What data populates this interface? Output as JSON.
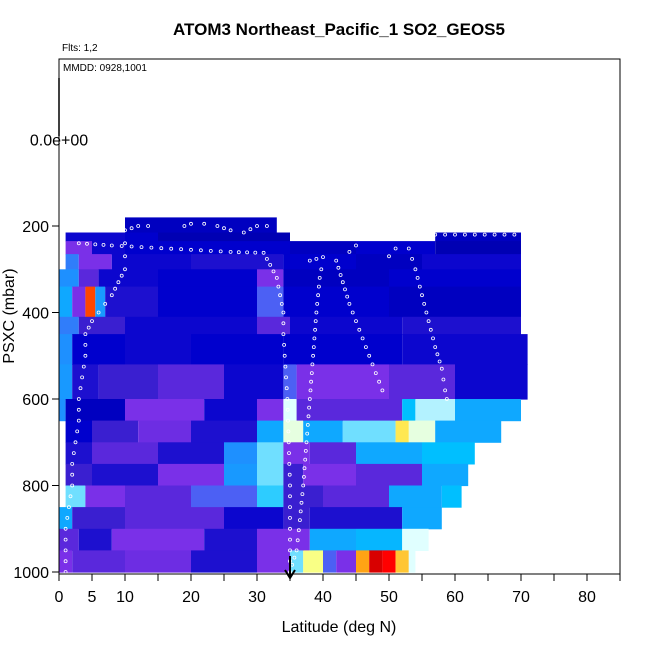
{
  "chart_data": {
    "type": "heatmap",
    "title": "ATOM3 Northeast_Pacific_1 SO2_GEOS5",
    "subtitle_flights": "Flts: 1,2",
    "subtitle_dates": "MMDD: 0928,1001",
    "xlabel": "Latitude (deg N)",
    "ylabel": "PSXC (mbar)",
    "xlim": [
      0,
      85
    ],
    "ylim": [
      1000,
      0
    ],
    "x_ticks": [
      0,
      5,
      10,
      20,
      30,
      40,
      50,
      60,
      70,
      80
    ],
    "x_tick_labels": [
      "0",
      "5",
      "10",
      "20",
      "30",
      "40",
      "50",
      "60",
      "70",
      "80"
    ],
    "x_minor_ticks": [
      15,
      25,
      35,
      45,
      55,
      65,
      75,
      85
    ],
    "y_ticks": [
      200,
      400,
      600,
      800,
      1000
    ],
    "y_tick_labels": [
      "200",
      "400",
      "600",
      "800",
      "1000"
    ],
    "y_extra_label": {
      "value": 0,
      "text": "0.0e+00"
    },
    "colorscale": [
      "#00008b",
      "#0000cd",
      "#3a1fd0",
      "#7a30e8",
      "#1e90ff",
      "#00bfff",
      "#e0ffff",
      "#ffff66",
      "#ff8c00",
      "#ff0000",
      "#b00000"
    ],
    "marker": {
      "x": 35,
      "y": 1000,
      "shape": "arrow-down"
    },
    "bands": [
      {
        "p": [
          180,
          215
        ],
        "segs": [
          [
            10,
            33,
            0.08
          ]
        ]
      },
      {
        "p": [
          215,
          235
        ],
        "segs": [
          [
            1,
            10,
            0.12
          ],
          [
            10,
            15,
            0.1
          ],
          [
            15,
            35,
            0.06
          ],
          [
            57,
            70,
            0.08
          ]
        ]
      },
      {
        "p": [
          235,
          265
        ],
        "segs": [
          [
            1,
            5,
            0.3
          ],
          [
            5,
            10,
            0.12
          ],
          [
            10,
            35,
            0.1
          ],
          [
            35,
            45,
            0.08
          ],
          [
            45,
            57,
            0.1
          ],
          [
            57,
            70,
            0.06
          ]
        ]
      },
      {
        "p": [
          265,
          300
        ],
        "segs": [
          [
            1,
            3,
            0.38
          ],
          [
            3,
            8,
            0.3
          ],
          [
            8,
            20,
            0.12
          ],
          [
            20,
            34,
            0.15
          ],
          [
            34,
            45,
            0.1
          ],
          [
            45,
            55,
            0.08
          ],
          [
            55,
            70,
            0.12
          ]
        ]
      },
      {
        "p": [
          300,
          340
        ],
        "segs": [
          [
            0,
            3,
            0.4
          ],
          [
            3,
            6,
            0.25
          ],
          [
            6,
            15,
            0.12
          ],
          [
            15,
            30,
            0.1
          ],
          [
            30,
            34,
            0.3
          ],
          [
            34,
            50,
            0.08
          ],
          [
            50,
            70,
            0.1
          ]
        ]
      },
      {
        "p": [
          340,
          410
        ],
        "segs": [
          [
            0,
            2,
            0.45
          ],
          [
            2,
            4,
            0.3
          ],
          [
            4,
            5.5,
            0.85
          ],
          [
            5.5,
            7,
            0.42
          ],
          [
            7,
            15,
            0.15
          ],
          [
            15,
            30,
            0.1
          ],
          [
            30,
            34,
            0.35
          ],
          [
            34,
            50,
            0.1
          ],
          [
            50,
            70,
            0.08
          ]
        ]
      },
      {
        "p": [
          410,
          450
        ],
        "segs": [
          [
            0,
            3,
            0.38
          ],
          [
            3,
            10,
            0.2
          ],
          [
            10,
            30,
            0.12
          ],
          [
            30,
            35,
            0.25
          ],
          [
            35,
            52,
            0.12
          ],
          [
            52,
            70,
            0.15
          ]
        ]
      },
      {
        "p": [
          450,
          520
        ],
        "segs": [
          [
            0,
            2,
            0.4
          ],
          [
            2,
            10,
            0.1
          ],
          [
            10,
            20,
            0.12
          ],
          [
            20,
            34,
            0.1
          ],
          [
            34,
            52,
            0.1
          ],
          [
            52,
            71,
            0.12
          ]
        ]
      },
      {
        "p": [
          520,
          600
        ],
        "segs": [
          [
            0,
            2,
            0.42
          ],
          [
            2,
            6,
            0.15
          ],
          [
            6,
            15,
            0.2
          ],
          [
            15,
            25,
            0.25
          ],
          [
            25,
            34,
            0.12
          ],
          [
            34,
            36,
            0.35
          ],
          [
            36,
            50,
            0.3
          ],
          [
            50,
            60,
            0.25
          ],
          [
            60,
            71,
            0.12
          ]
        ]
      },
      {
        "p": [
          600,
          650
        ],
        "segs": [
          [
            0,
            1,
            0.4
          ],
          [
            1,
            10,
            0.08
          ],
          [
            10,
            22,
            0.3
          ],
          [
            22,
            30,
            0.12
          ],
          [
            30,
            34,
            0.3
          ],
          [
            34,
            36,
            0.6
          ],
          [
            36,
            52,
            0.25
          ],
          [
            52,
            54,
            0.5
          ],
          [
            54,
            60,
            0.58
          ],
          [
            60,
            70,
            0.45
          ]
        ]
      },
      {
        "p": [
          650,
          700
        ],
        "segs": [
          [
            1,
            5,
            0.1
          ],
          [
            5,
            12,
            0.2
          ],
          [
            12,
            20,
            0.28
          ],
          [
            20,
            30,
            0.15
          ],
          [
            30,
            34,
            0.45
          ],
          [
            34,
            37,
            0.62
          ],
          [
            37,
            43,
            0.45
          ],
          [
            43,
            51,
            0.55
          ],
          [
            51,
            53,
            0.72
          ],
          [
            53,
            57,
            0.62
          ],
          [
            57,
            67,
            0.45
          ]
        ]
      },
      {
        "p": [
          700,
          750
        ],
        "segs": [
          [
            1,
            5,
            0.15
          ],
          [
            5,
            15,
            0.25
          ],
          [
            15,
            25,
            0.15
          ],
          [
            25,
            30,
            0.4
          ],
          [
            30,
            34,
            0.55
          ],
          [
            34,
            38,
            0.3
          ],
          [
            38,
            45,
            0.25
          ],
          [
            45,
            55,
            0.45
          ],
          [
            55,
            63,
            0.5
          ]
        ]
      },
      {
        "p": [
          750,
          800
        ],
        "segs": [
          [
            1,
            5,
            0.2
          ],
          [
            5,
            15,
            0.15
          ],
          [
            15,
            25,
            0.3
          ],
          [
            25,
            30,
            0.42
          ],
          [
            30,
            34,
            0.55
          ],
          [
            34,
            37,
            0.2
          ],
          [
            37,
            45,
            0.3
          ],
          [
            45,
            55,
            0.25
          ],
          [
            55,
            62,
            0.45
          ]
        ]
      },
      {
        "p": [
          800,
          850
        ],
        "segs": [
          [
            1,
            4,
            0.55
          ],
          [
            4,
            10,
            0.3
          ],
          [
            10,
            20,
            0.25
          ],
          [
            20,
            30,
            0.35
          ],
          [
            30,
            34,
            0.52
          ],
          [
            34,
            40,
            0.2
          ],
          [
            40,
            50,
            0.25
          ],
          [
            50,
            58,
            0.45
          ],
          [
            58,
            61,
            0.5
          ]
        ]
      },
      {
        "p": [
          850,
          900
        ],
        "segs": [
          [
            0,
            2,
            0.45
          ],
          [
            2,
            10,
            0.2
          ],
          [
            10,
            25,
            0.25
          ],
          [
            25,
            34,
            0.12
          ],
          [
            34,
            38,
            0.2
          ],
          [
            38,
            52,
            0.15
          ],
          [
            52,
            58,
            0.45
          ]
        ]
      },
      {
        "p": [
          900,
          950
        ],
        "segs": [
          [
            0,
            3,
            0.25
          ],
          [
            3,
            8,
            0.15
          ],
          [
            8,
            22,
            0.3
          ],
          [
            22,
            30,
            0.15
          ],
          [
            30,
            38,
            0.3
          ],
          [
            38,
            45,
            0.45
          ],
          [
            45,
            52,
            0.48
          ],
          [
            52,
            56,
            0.6
          ]
        ]
      },
      {
        "p": [
          950,
          1000
        ],
        "segs": [
          [
            0,
            2,
            0.3
          ],
          [
            2,
            10,
            0.25
          ],
          [
            10,
            20,
            0.28
          ],
          [
            20,
            30,
            0.15
          ],
          [
            30,
            35,
            0.3
          ],
          [
            35,
            37,
            0.55
          ],
          [
            37,
            40,
            0.68
          ],
          [
            40,
            42,
            0.35
          ],
          [
            42,
            45,
            0.3
          ],
          [
            45,
            47,
            0.78
          ],
          [
            47,
            49,
            0.95
          ],
          [
            49,
            51,
            0.9
          ],
          [
            51,
            53,
            0.75
          ],
          [
            53,
            54,
            0.6
          ]
        ]
      }
    ],
    "flight_tracks": [
      [
        [
          1,
          1000
        ],
        [
          1,
          950
        ],
        [
          1,
          900
        ],
        [
          1.5,
          850
        ],
        [
          2,
          800
        ],
        [
          2,
          750
        ],
        [
          2.5,
          700
        ],
        [
          3,
          650
        ],
        [
          3,
          600
        ],
        [
          3.5,
          550
        ],
        [
          4,
          500
        ],
        [
          4,
          450
        ],
        [
          5,
          420
        ],
        [
          6,
          400
        ],
        [
          7,
          380
        ],
        [
          8,
          360
        ],
        [
          9,
          330
        ],
        [
          10,
          300
        ],
        [
          10,
          270
        ],
        [
          10,
          240
        ],
        [
          10,
          210
        ],
        [
          12,
          200
        ],
        [
          15,
          200
        ]
      ],
      [
        [
          19,
          200
        ],
        [
          20,
          195
        ],
        [
          22,
          195
        ],
        [
          24,
          200
        ],
        [
          26,
          210
        ],
        [
          28,
          215
        ],
        [
          30,
          200
        ],
        [
          33,
          200
        ]
      ],
      [
        [
          3,
          240
        ],
        [
          8,
          245
        ],
        [
          14,
          250
        ],
        [
          20,
          255
        ],
        [
          26,
          260
        ],
        [
          31,
          262
        ]
      ],
      [
        [
          31,
          262
        ],
        [
          32,
          290
        ],
        [
          33,
          320
        ],
        [
          33.5,
          360
        ],
        [
          34,
          400
        ],
        [
          34,
          450
        ],
        [
          34.2,
          500
        ],
        [
          34.4,
          550
        ],
        [
          34.6,
          600
        ],
        [
          34.7,
          650
        ],
        [
          34.8,
          700
        ],
        [
          34.9,
          750
        ],
        [
          35,
          800
        ],
        [
          35,
          850
        ],
        [
          35,
          900
        ],
        [
          35,
          950
        ],
        [
          35,
          1000
        ]
      ],
      [
        [
          35,
          1000
        ],
        [
          36,
          950
        ],
        [
          36.5,
          880
        ],
        [
          37,
          800
        ],
        [
          37.5,
          700
        ],
        [
          38,
          600
        ],
        [
          38.5,
          500
        ],
        [
          39,
          400
        ],
        [
          39.5,
          320
        ],
        [
          40,
          280
        ]
      ],
      [
        [
          38,
          280
        ],
        [
          40,
          272
        ],
        [
          42,
          272
        ]
      ],
      [
        [
          42,
          280
        ],
        [
          43,
          330
        ],
        [
          44,
          380
        ],
        [
          45,
          420
        ],
        [
          46,
          460
        ],
        [
          47,
          500
        ],
        [
          48,
          540
        ],
        [
          49,
          580
        ],
        [
          50,
          600
        ]
      ],
      [
        [
          44,
          260
        ],
        [
          45,
          245
        ],
        [
          47,
          245
        ]
      ],
      [
        [
          50,
          270
        ],
        [
          51,
          252
        ],
        [
          53,
          252
        ],
        [
          54,
          300
        ],
        [
          55,
          360
        ],
        [
          56,
          420
        ],
        [
          57,
          480
        ],
        [
          58,
          530
        ],
        [
          58.5,
          580
        ],
        [
          59,
          620
        ]
      ],
      [
        [
          57,
          220
        ],
        [
          60,
          220
        ],
        [
          63,
          220
        ],
        [
          66,
          220
        ],
        [
          69,
          220
        ],
        [
          71,
          220
        ]
      ]
    ]
  }
}
